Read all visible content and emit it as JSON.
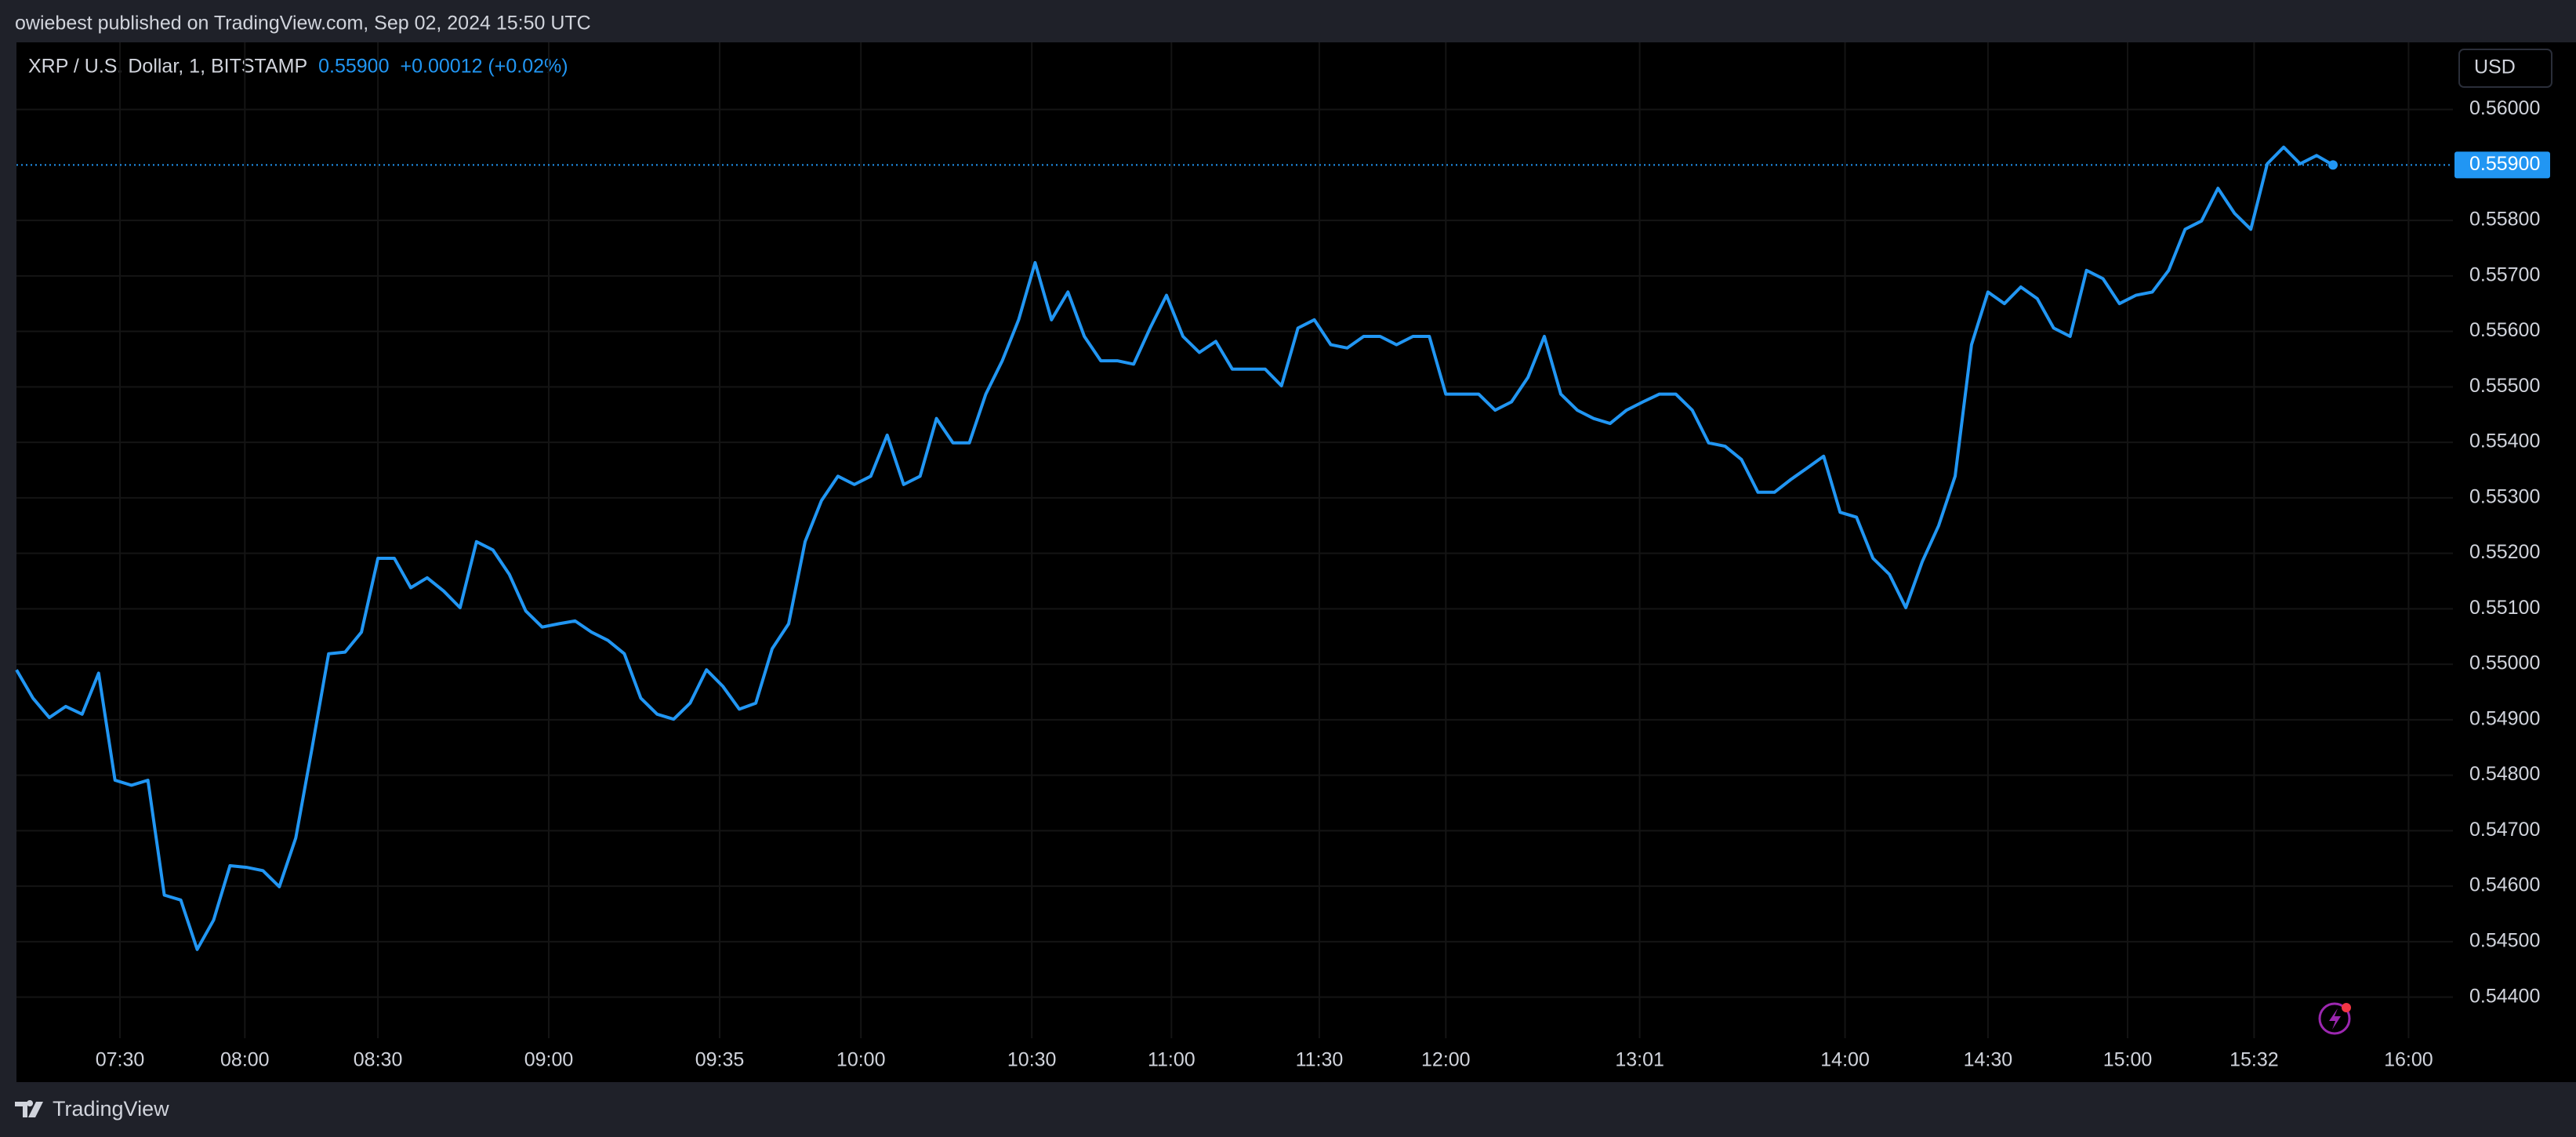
{
  "header": {
    "text": "owiebest published on TradingView.com, Sep 02, 2024 15:50 UTC"
  },
  "chart_data": {
    "type": "line",
    "title": "XRP / U.S. Dollar, 1, BITSTAMP",
    "last_value": {
      "value": 0.559,
      "label": "0.55900"
    },
    "change": "+0.00012 (+0.02%)",
    "currency": "USD",
    "color": "#2196f3",
    "values": [
      0.5499,
      0.54939,
      0.54904,
      0.54924,
      0.5491,
      0.54984,
      0.54791,
      0.54782,
      0.54791,
      0.54584,
      0.54575,
      0.54486,
      0.54539,
      0.54637,
      0.54634,
      0.54628,
      0.54599,
      0.54687,
      0.5485,
      0.55019,
      0.55022,
      0.55058,
      0.55191,
      0.55191,
      0.55138,
      0.55156,
      0.55132,
      0.55102,
      0.55221,
      0.55206,
      0.55162,
      0.55096,
      0.55067,
      0.55073,
      0.55078,
      0.55058,
      0.55043,
      0.55019,
      0.54939,
      0.5491,
      0.54901,
      0.5493,
      0.5499,
      0.5496,
      0.54919,
      0.5493,
      0.55028,
      0.55073,
      0.55221,
      0.55295,
      0.55339,
      0.55324,
      0.55339,
      0.55413,
      0.55324,
      0.55339,
      0.55443,
      0.55399,
      0.55399,
      0.55487,
      0.55547,
      0.55621,
      0.55724,
      0.55621,
      0.55671,
      0.55591,
      0.55547,
      0.55547,
      0.55541,
      0.55606,
      0.55665,
      0.55591,
      0.55562,
      0.55582,
      0.55532,
      0.55532,
      0.55532,
      0.55502,
      0.55606,
      0.55621,
      0.55576,
      0.5557,
      0.55591,
      0.55591,
      0.55576,
      0.55591,
      0.55591,
      0.55487,
      0.55487,
      0.55487,
      0.55458,
      0.55473,
      0.55517,
      0.55591,
      0.55487,
      0.55458,
      0.55443,
      0.55434,
      0.55458,
      0.55473,
      0.55487,
      0.55487,
      0.55458,
      0.55399,
      0.55393,
      0.55369,
      0.5531,
      0.5531,
      0.55333,
      0.55354,
      0.55375,
      0.55274,
      0.55265,
      0.55191,
      0.55162,
      0.55102,
      0.55185,
      0.5525,
      0.55339,
      0.55576,
      0.55671,
      0.5565,
      0.5568,
      0.55659,
      0.55606,
      0.55591,
      0.5571,
      0.55695,
      0.5565,
      0.55665,
      0.55671,
      0.5571,
      0.55784,
      0.55799,
      0.55858,
      0.55813,
      0.55784,
      0.55902,
      0.55932,
      0.55902,
      0.55917,
      0.559
    ],
    "xlim": [
      0,
      148.3
    ],
    "xticks": [
      {
        "value": 6.3,
        "label": "07:30"
      },
      {
        "value": 13.9,
        "label": "08:00"
      },
      {
        "value": 22,
        "label": "08:30"
      },
      {
        "value": 32.4,
        "label": "09:00"
      },
      {
        "value": 42.8,
        "label": "09:35"
      },
      {
        "value": 51.4,
        "label": "10:00"
      },
      {
        "value": 61.8,
        "label": "10:30"
      },
      {
        "value": 70.3,
        "label": "11:00"
      },
      {
        "value": 79.3,
        "label": "11:30"
      },
      {
        "value": 87,
        "label": "12:00"
      },
      {
        "value": 98.8,
        "label": "13:01"
      },
      {
        "value": 111.3,
        "label": "14:00"
      },
      {
        "value": 120,
        "label": "14:30"
      },
      {
        "value": 128.5,
        "label": "15:00"
      },
      {
        "value": 136.2,
        "label": "15:32"
      },
      {
        "value": 145.6,
        "label": "16:00"
      }
    ],
    "ylim": [
      0.54326,
      0.56121
    ],
    "yticks": [
      {
        "value": 0.544,
        "label": "0.54400"
      },
      {
        "value": 0.545,
        "label": "0.54500"
      },
      {
        "value": 0.546,
        "label": "0.54600"
      },
      {
        "value": 0.547,
        "label": "0.54700"
      },
      {
        "value": 0.548,
        "label": "0.54800"
      },
      {
        "value": 0.549,
        "label": "0.54900"
      },
      {
        "value": 0.55,
        "label": "0.55000"
      },
      {
        "value": 0.551,
        "label": "0.55100"
      },
      {
        "value": 0.552,
        "label": "0.55200"
      },
      {
        "value": 0.553,
        "label": "0.55300"
      },
      {
        "value": 0.554,
        "label": "0.55400"
      },
      {
        "value": 0.555,
        "label": "0.55500"
      },
      {
        "value": 0.556,
        "label": "0.55600"
      },
      {
        "value": 0.557,
        "label": "0.55700"
      },
      {
        "value": 0.558,
        "label": "0.55800"
      },
      {
        "value": 0.56,
        "label": "0.56000"
      }
    ],
    "grid": true
  },
  "footer": {
    "brand": "TradingView"
  }
}
